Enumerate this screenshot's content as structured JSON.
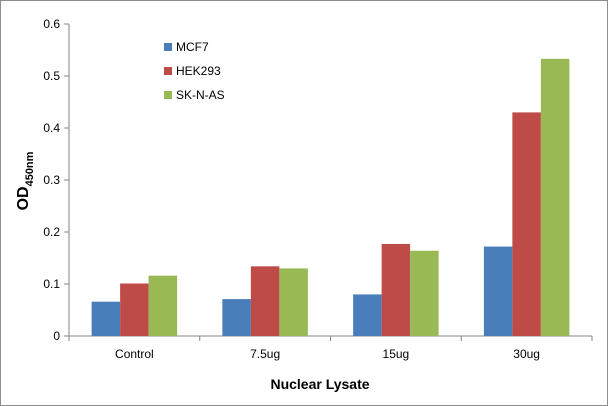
{
  "chart_data": {
    "type": "bar",
    "categories": [
      "Control",
      "7.5ug",
      "15ug",
      "30ug"
    ],
    "series": [
      {
        "name": "MCF7",
        "values": [
          0.066,
          0.071,
          0.08,
          0.172
        ],
        "color": "#4a7ebb"
      },
      {
        "name": "HEK293",
        "values": [
          0.101,
          0.134,
          0.177,
          0.43
        ],
        "color": "#be4b48"
      },
      {
        "name": "SK-N-AS",
        "values": [
          0.116,
          0.13,
          0.164,
          0.533
        ],
        "color": "#98b954"
      }
    ],
    "xlabel": "Nuclear Lysate",
    "ylabel": {
      "main": "OD",
      "subscript": "450nm"
    },
    "ylim": [
      0,
      0.6
    ],
    "yticks": [
      "0",
      "0.1",
      "0.2",
      "0.3",
      "0.4",
      "0.5",
      "0.6"
    ],
    "grid": false,
    "legend_position": "top-left"
  }
}
